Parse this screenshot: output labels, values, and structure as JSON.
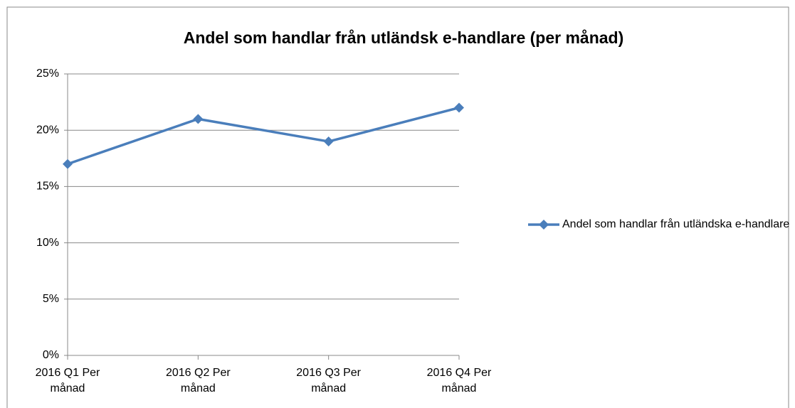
{
  "chart_data": {
    "type": "line",
    "title": "Andel som handlar från utländsk e-handlare (per månad)",
    "categories": [
      "2016 Q1 Per månad",
      "2016 Q2 Per månad",
      "2016 Q3 Per månad",
      "2016 Q4 Per månad"
    ],
    "series": [
      {
        "name": "Andel som handlar från utländska e-handlare",
        "color": "#4a7ebb",
        "values": [
          17,
          21,
          19,
          22
        ]
      }
    ],
    "ylim": [
      0,
      25
    ],
    "yticks": [
      {
        "value": 0,
        "label": "0%"
      },
      {
        "value": 5,
        "label": "5%"
      },
      {
        "value": 10,
        "label": "10%"
      },
      {
        "value": 15,
        "label": "15%"
      },
      {
        "value": 20,
        "label": "20%"
      },
      {
        "value": 25,
        "label": "25%"
      }
    ],
    "grid": true,
    "legend": "right"
  }
}
